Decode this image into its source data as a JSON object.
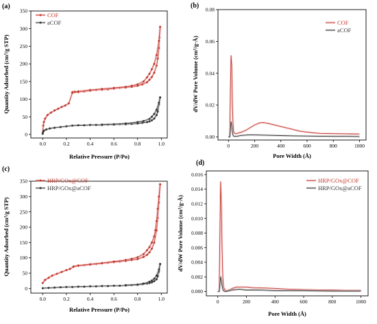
{
  "figure": {
    "panels": [
      "(a)",
      "(b)",
      "(c)",
      "(d)"
    ]
  },
  "chart_data": [
    {
      "panel": "(a)",
      "type": "line",
      "xlabel": "Relative Pressure (P/Po)",
      "ylabel": "Quantity Adsorbed (cm³/g STP)",
      "xlim": [
        -0.1,
        1.05
      ],
      "ylim": [
        -10,
        350
      ],
      "xticks": [
        0.0,
        0.2,
        0.4,
        0.6,
        0.8,
        1.0
      ],
      "xtick_labels": [
        "0.0",
        "0.2",
        "0.4",
        "0.6",
        "0.8",
        "1.0"
      ],
      "yticks": [
        0,
        50,
        100,
        150,
        200,
        250,
        300,
        350
      ],
      "ytick_labels": [
        "0",
        "50",
        "100",
        "150",
        "200",
        "250",
        "300",
        "350"
      ],
      "legend_position": "top-left",
      "series": [
        {
          "name": "COF",
          "color": "#c0392b",
          "marker": "diamond",
          "adsorption": {
            "x": [
              0.0,
              0.005,
              0.01,
              0.02,
              0.04,
              0.07,
              0.1,
              0.13,
              0.16,
              0.19,
              0.22,
              0.25,
              0.3,
              0.35,
              0.4,
              0.45,
              0.5,
              0.55,
              0.6,
              0.65,
              0.7,
              0.75,
              0.8,
              0.84,
              0.88,
              0.9,
              0.92,
              0.94,
              0.96,
              0.97,
              0.98,
              0.985,
              0.99
            ],
            "y": [
              5,
              25,
              35,
              45,
              55,
              62,
              68,
              73,
              78,
              82,
              88,
              118,
              120,
              122,
              124,
              126,
              127,
              128,
              130,
              132,
              133,
              135,
              138,
              142,
              148,
              155,
              163,
              175,
              195,
              215,
              245,
              275,
              305
            ]
          },
          "desorption": {
            "x": [
              0.99,
              0.98,
              0.96,
              0.94,
              0.92,
              0.9,
              0.88,
              0.85,
              0.8,
              0.75,
              0.7,
              0.6,
              0.5,
              0.4,
              0.3,
              0.27,
              0.25
            ],
            "y": [
              305,
              265,
              225,
              200,
              185,
              172,
              162,
              150,
              142,
              138,
              135,
              132,
              129,
              126,
              122,
              121,
              120
            ]
          }
        },
        {
          "name": "aCOF",
          "color": "#333333",
          "marker": "circle",
          "adsorption": {
            "x": [
              0.0,
              0.005,
              0.01,
              0.03,
              0.06,
              0.1,
              0.15,
              0.2,
              0.25,
              0.3,
              0.35,
              0.4,
              0.45,
              0.5,
              0.55,
              0.6,
              0.65,
              0.7,
              0.75,
              0.8,
              0.84,
              0.88,
              0.9,
              0.92,
              0.94,
              0.96,
              0.97,
              0.98,
              0.99
            ],
            "y": [
              2,
              8,
              11,
              14,
              17,
              19,
              21,
              23,
              25,
              26,
              26,
              27,
              27,
              27,
              28,
              28,
              29,
              29,
              30,
              31,
              33,
              35,
              37,
              40,
              45,
              55,
              65,
              85,
              105
            ]
          },
          "desorption": {
            "x": [
              0.99,
              0.98,
              0.96,
              0.94,
              0.92,
              0.9,
              0.85,
              0.8,
              0.7,
              0.6,
              0.5
            ],
            "y": [
              105,
              90,
              70,
              58,
              50,
              44,
              38,
              35,
              31,
              29,
              28
            ]
          }
        }
      ]
    },
    {
      "panel": "(b)",
      "type": "line",
      "xlabel": "Pore Width (Å)",
      "ylabel": "dV/dW Pore Volume (cm³/g·Å)",
      "xlim": [
        -80,
        1050
      ],
      "ylim": [
        -0.002,
        0.08
      ],
      "xticks": [
        0,
        200,
        400,
        600,
        800,
        1000
      ],
      "xtick_labels": [
        "0",
        "200",
        "400",
        "600",
        "800",
        "1000"
      ],
      "yticks": [
        0.0,
        0.02,
        0.04,
        0.06,
        0.08
      ],
      "ytick_labels": [
        "0.00",
        "0.02",
        "0.04",
        "0.06",
        "0.08"
      ],
      "legend_position": "top-right",
      "series": [
        {
          "name": "COF",
          "color": "#c0392b",
          "x": [
            0,
            10,
            15,
            20,
            25,
            30,
            35,
            40,
            50,
            60,
            80,
            100,
            130,
            160,
            200,
            240,
            270,
            300,
            350,
            400,
            450,
            500,
            550,
            600,
            650,
            700,
            800,
            900,
            1000
          ],
          "y": [
            0,
            0.0,
            0.03,
            0.051,
            0.045,
            0.02,
            0.008,
            0.003,
            0.002,
            0.002,
            0.0025,
            0.003,
            0.004,
            0.0055,
            0.0075,
            0.0088,
            0.009,
            0.0085,
            0.0075,
            0.0065,
            0.0055,
            0.0045,
            0.0035,
            0.003,
            0.0025,
            0.0022,
            0.002,
            0.0019,
            0.0018
          ]
        },
        {
          "name": "aCOF",
          "color": "#333333",
          "x": [
            0,
            10,
            15,
            20,
            25,
            30,
            35,
            40,
            50,
            60,
            80,
            100,
            150,
            200,
            300,
            400,
            500,
            600,
            700,
            800,
            900,
            1000
          ],
          "y": [
            0,
            0.0,
            0.005,
            0.0095,
            0.007,
            0.003,
            0.001,
            0.0004,
            0.0003,
            0.0003,
            0.0006,
            0.0009,
            0.0012,
            0.0012,
            0.001,
            0.0008,
            0.0006,
            0.0005,
            0.0004,
            0.0003,
            0.0003,
            0.0002
          ]
        }
      ]
    },
    {
      "panel": "(c)",
      "type": "line",
      "xlabel": "Relative Pressure (P/Po)",
      "ylabel": "Quantity Adsorbed (cm³/g STP)",
      "xlim": [
        -0.1,
        1.05
      ],
      "ylim": [
        -15,
        350
      ],
      "xticks": [
        0.0,
        0.2,
        0.4,
        0.6,
        0.8,
        1.0
      ],
      "xtick_labels": [
        "0.0",
        "0.2",
        "0.4",
        "0.6",
        "0.8",
        "1.0"
      ],
      "yticks": [
        0,
        50,
        100,
        150,
        200,
        250,
        300,
        350
      ],
      "ytick_labels": [
        "0",
        "50",
        "100",
        "150",
        "200",
        "250",
        "300",
        "350"
      ],
      "legend_position": "top-left",
      "series": [
        {
          "name": "HRP/GOx@COF",
          "color": "#c0392b",
          "marker": "diamond",
          "adsorption": {
            "x": [
              0.0,
              0.02,
              0.05,
              0.08,
              0.12,
              0.16,
              0.2,
              0.23,
              0.26,
              0.3,
              0.35,
              0.4,
              0.45,
              0.5,
              0.55,
              0.6,
              0.65,
              0.7,
              0.75,
              0.8,
              0.85,
              0.88,
              0.9,
              0.92,
              0.94,
              0.96,
              0.97,
              0.98,
              0.99
            ],
            "y": [
              18,
              28,
              35,
              42,
              48,
              54,
              60,
              64,
              71,
              74,
              76,
              78,
              80,
              82,
              84,
              86,
              88,
              90,
              93,
              96,
              103,
              110,
              118,
              130,
              150,
              190,
              230,
              280,
              340
            ]
          },
          "desorption": {
            "x": [
              0.99,
              0.98,
              0.97,
              0.96,
              0.95,
              0.94,
              0.92,
              0.9,
              0.88,
              0.85,
              0.8,
              0.75,
              0.7,
              0.6,
              0.5,
              0.4,
              0.3,
              0.26
            ],
            "y": [
              340,
              300,
              260,
              220,
              190,
              170,
              150,
              135,
              125,
              112,
              102,
              97,
              93,
              88,
              83,
              79,
              75,
              72
            ]
          }
        },
        {
          "name": "HRP/GOx@aCOF",
          "color": "#333333",
          "marker": "circle",
          "adsorption": {
            "x": [
              0.0,
              0.05,
              0.1,
              0.15,
              0.2,
              0.25,
              0.3,
              0.35,
              0.4,
              0.45,
              0.5,
              0.55,
              0.6,
              0.65,
              0.7,
              0.75,
              0.8,
              0.84,
              0.88,
              0.9,
              0.92,
              0.94,
              0.96,
              0.97,
              0.98,
              0.99
            ],
            "y": [
              1,
              2,
              3,
              4,
              5,
              5,
              6,
              6,
              7,
              7,
              8,
              8,
              9,
              9,
              10,
              11,
              12,
              14,
              16,
              18,
              20,
              24,
              30,
              40,
              55,
              80
            ]
          },
          "desorption": {
            "x": [
              0.99,
              0.98,
              0.96,
              0.94,
              0.92,
              0.9,
              0.85,
              0.8,
              0.7
            ],
            "y": [
              80,
              62,
              42,
              32,
              26,
              22,
              16,
              13,
              11
            ]
          }
        }
      ]
    },
    {
      "panel": "(d)",
      "type": "line",
      "xlabel": "Pore Width (Å)",
      "ylabel": "dV/dW Pore Volume (cm³/g·Å)",
      "xlim": [
        -80,
        1050
      ],
      "ylim": [
        -0.0006,
        0.0165
      ],
      "xticks": [
        0,
        200,
        400,
        600,
        800,
        1000
      ],
      "xtick_labels": [
        "0",
        "200",
        "400",
        "600",
        "800",
        "1000"
      ],
      "yticks": [
        0.0,
        0.002,
        0.004,
        0.006,
        0.008,
        0.01,
        0.012,
        0.014,
        0.016
      ],
      "ytick_labels": [
        "0.000",
        "0.002",
        "0.004",
        "0.006",
        "0.008",
        "0.010",
        "0.012",
        "0.014",
        "0.016"
      ],
      "legend_position": "top-right",
      "series": [
        {
          "name": "HRP/GOx@COF",
          "color": "#c0392b",
          "x": [
            0,
            10,
            15,
            20,
            25,
            30,
            35,
            40,
            50,
            60,
            80,
            100,
            130,
            160,
            200,
            250,
            300,
            400,
            500,
            600,
            700,
            800,
            900,
            1000
          ],
          "y": [
            0,
            0.0,
            0.008,
            0.015,
            0.012,
            0.006,
            0.002,
            0.0006,
            0.0002,
            0.0001,
            0.0002,
            0.0004,
            0.0006,
            0.0006,
            0.0006,
            0.0005,
            0.0005,
            0.0004,
            0.0003,
            0.00025,
            0.0002,
            0.0002,
            0.00015,
            0.00015
          ]
        },
        {
          "name": "HRP/GOx@aCOF",
          "color": "#333333",
          "x": [
            0,
            10,
            15,
            20,
            25,
            30,
            35,
            40,
            50,
            60,
            80,
            100,
            150,
            200,
            300,
            400,
            500,
            600,
            800,
            1000
          ],
          "y": [
            0,
            0.0,
            0.001,
            0.002,
            0.0015,
            0.0008,
            0.0003,
            0.0001,
            0.0,
            0.0,
            0.0001,
            0.0002,
            0.0003,
            0.0002,
            0.0002,
            0.0001,
            0.0001,
            0.0001,
            5e-05,
            5e-05
          ]
        }
      ]
    }
  ]
}
